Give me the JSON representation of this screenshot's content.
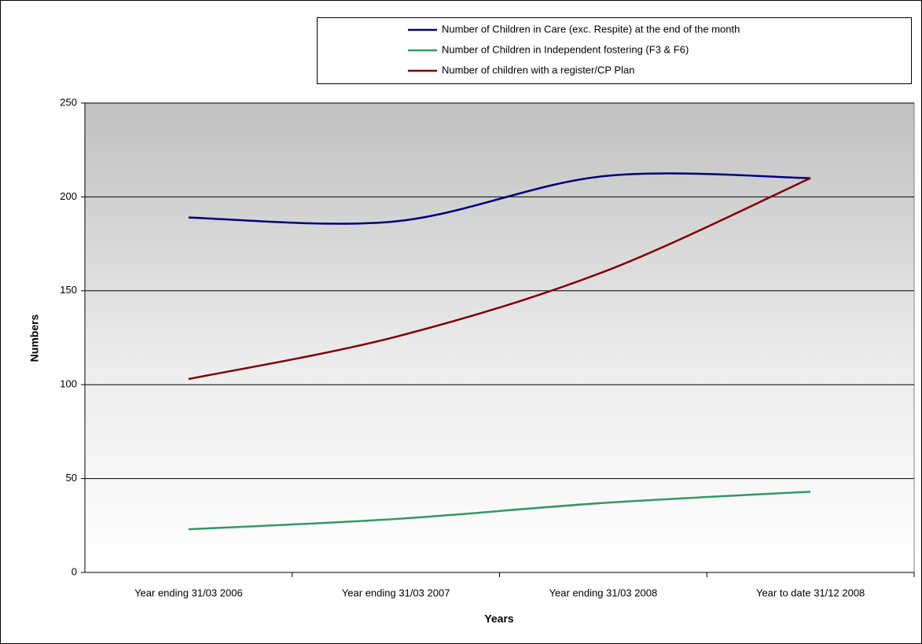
{
  "chart_data": {
    "type": "line",
    "categories": [
      "Year ending 31/03 2006",
      "Year ending 31/03 2007",
      "Year ending 31/03 2008",
      "Year to date 31/12 2008"
    ],
    "series": [
      {
        "name": "Number of Children in Care (exc. Respite) at the end of the month",
        "color": "#000080",
        "values": [
          189,
          187,
          211,
          210
        ]
      },
      {
        "name": "Number of Children in Independent fostering (F3 & F6)",
        "color": "#339966",
        "values": [
          23,
          28.5,
          37,
          43
        ]
      },
      {
        "name": "Number of children with a register/CP Plan",
        "color": "#800000",
        "values": [
          103,
          125.5,
          160,
          210
        ]
      }
    ],
    "ylabel": "Numbers",
    "xlabel": "Years",
    "ylim": [
      0,
      250
    ],
    "yticks": [
      0,
      50,
      100,
      150,
      200,
      250
    ],
    "grid": true
  }
}
